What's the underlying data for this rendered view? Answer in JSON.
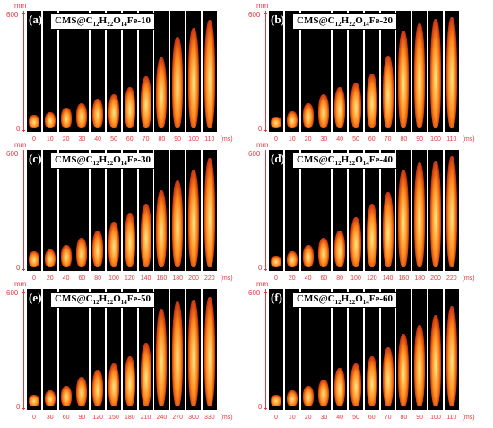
{
  "figure": {
    "y_axis_unit": "mm",
    "x_axis_unit": "(ms)",
    "y_ticks": [
      "600",
      "0"
    ],
    "panels": [
      {
        "letter": "(a)",
        "label_prefix": "CMS@C",
        "label_sub1": "12",
        "label_mid1": "H",
        "label_sub2": "22",
        "label_mid2": "O",
        "label_sub3": "14",
        "label_suffix": "Fe-10",
        "times": [
          "0",
          "10",
          "20",
          "30",
          "40",
          "50",
          "60",
          "70",
          "80",
          "90",
          "100",
          "110"
        ],
        "flame_heights_fraction": [
          0.12,
          0.14,
          0.18,
          0.22,
          0.26,
          0.3,
          0.36,
          0.46,
          0.62,
          0.8,
          0.88,
          0.95
        ]
      },
      {
        "letter": "(b)",
        "label_prefix": "CMS@C",
        "label_sub1": "12",
        "label_mid1": "H",
        "label_sub2": "22",
        "label_mid2": "O",
        "label_sub3": "14",
        "label_suffix": "Fe-20",
        "times": [
          "0",
          "10",
          "20",
          "30",
          "40",
          "50",
          "60",
          "70",
          "80",
          "90",
          "100",
          "110"
        ],
        "flame_heights_fraction": [
          0.1,
          0.15,
          0.22,
          0.3,
          0.36,
          0.4,
          0.48,
          0.64,
          0.86,
          0.92,
          0.96,
          0.98
        ]
      },
      {
        "letter": "(c)",
        "label_prefix": "CMS@C",
        "label_sub1": "12",
        "label_mid1": "H",
        "label_sub2": "22",
        "label_mid2": "O",
        "label_sub3": "14",
        "label_suffix": "Fe-30",
        "times": [
          "0",
          "20",
          "40",
          "60",
          "80",
          "100",
          "120",
          "140",
          "160",
          "180",
          "200",
          "220"
        ],
        "flame_heights_fraction": [
          0.14,
          0.16,
          0.2,
          0.26,
          0.32,
          0.4,
          0.48,
          0.56,
          0.68,
          0.76,
          0.86,
          0.96
        ]
      },
      {
        "letter": "(d)",
        "label_prefix": "CMS@C",
        "label_sub1": "12",
        "label_mid1": "H",
        "label_sub2": "22",
        "label_mid2": "O",
        "label_sub3": "14",
        "label_suffix": "Fe-40",
        "times": [
          "0",
          "20",
          "40",
          "60",
          "80",
          "100",
          "120",
          "140",
          "160",
          "180",
          "200",
          "220"
        ],
        "flame_heights_fraction": [
          0.1,
          0.14,
          0.2,
          0.26,
          0.32,
          0.44,
          0.56,
          0.66,
          0.86,
          0.92,
          0.94,
          0.98
        ]
      },
      {
        "letter": "(e)",
        "label_prefix": "CMS@C",
        "label_sub1": "12",
        "label_mid1": "H",
        "label_sub2": "22",
        "label_mid2": "O",
        "label_sub3": "14",
        "label_suffix": "Fe-50",
        "times": [
          "0",
          "30",
          "60",
          "90",
          "120",
          "150",
          "180",
          "210",
          "240",
          "270",
          "300",
          "330"
        ],
        "flame_heights_fraction": [
          0.1,
          0.14,
          0.18,
          0.26,
          0.32,
          0.38,
          0.44,
          0.56,
          0.86,
          0.92,
          0.94,
          0.96
        ]
      },
      {
        "letter": "(f)",
        "label_prefix": "CMS@C",
        "label_sub1": "12",
        "label_mid1": "H",
        "label_sub2": "22",
        "label_mid2": "O",
        "label_sub3": "14",
        "label_suffix": "Fe-60",
        "times": [
          "0",
          "10",
          "20",
          "30",
          "40",
          "50",
          "60",
          "70",
          "80",
          "90",
          "100",
          "110"
        ],
        "flame_heights_fraction": [
          0.1,
          0.14,
          0.18,
          0.24,
          0.34,
          0.38,
          0.44,
          0.52,
          0.64,
          0.72,
          0.8,
          0.88
        ]
      }
    ],
    "colors": {
      "axis_red": "#e8383f",
      "frame_black": "#000000",
      "flame_core": "#ffe98a",
      "flame_mid": "#ff8a1c",
      "flame_edge": "#b3170b"
    }
  }
}
